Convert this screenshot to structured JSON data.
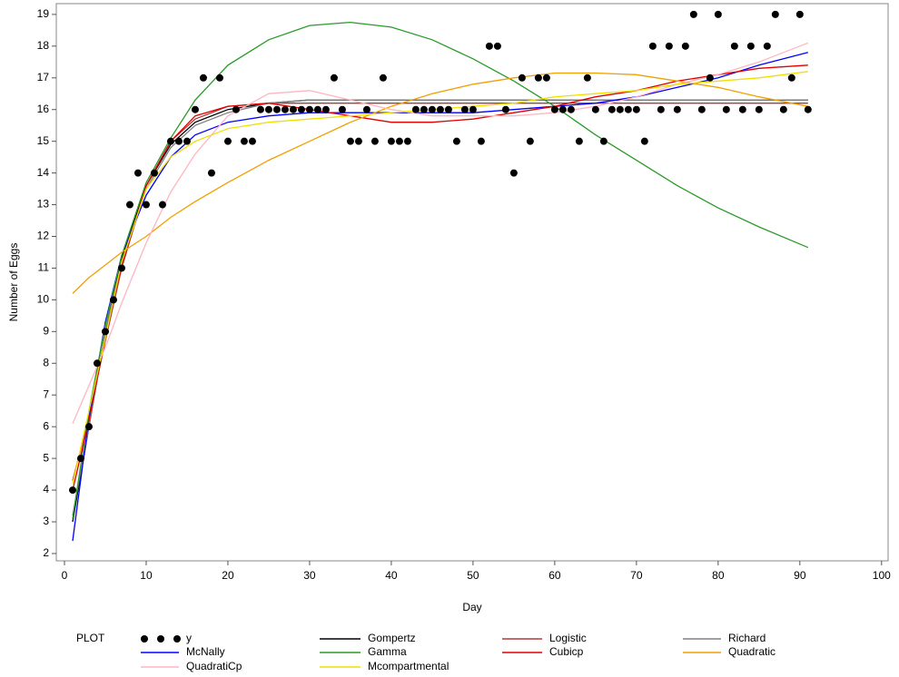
{
  "chart_data": {
    "type": "line",
    "x_label": "Day",
    "y_label": "Number of Eggs",
    "legend_title": "PLOT",
    "xlim": [
      -1,
      100.8
    ],
    "ylim": [
      1.77,
      19.34
    ],
    "xticks": [
      0,
      10,
      20,
      30,
      40,
      50,
      60,
      70,
      80,
      90,
      100
    ],
    "yticks": [
      2,
      3,
      4,
      5,
      6,
      7,
      8,
      9,
      10,
      11,
      12,
      13,
      14,
      15,
      16,
      17,
      18,
      19
    ],
    "points": {
      "name": "y",
      "color": "#000000",
      "x": [
        1,
        2,
        3,
        4,
        5,
        6,
        7,
        8,
        9,
        10,
        11,
        12,
        13,
        14,
        15,
        16,
        17,
        18,
        19,
        20,
        21,
        22,
        23,
        24,
        25,
        26,
        27,
        28,
        29,
        30,
        31,
        32,
        33,
        34,
        35,
        36,
        37,
        38,
        39,
        40,
        41,
        42,
        43,
        44,
        45,
        46,
        47,
        48,
        49,
        50,
        51,
        52,
        53,
        54,
        55,
        56,
        57,
        58,
        59,
        60,
        61,
        62,
        63,
        64,
        65,
        66,
        67,
        68,
        69,
        70,
        71,
        72,
        73,
        74,
        75,
        76,
        77,
        78,
        79,
        80,
        81,
        82,
        83,
        84,
        85,
        86,
        87,
        88,
        89,
        90,
        91
      ],
      "values": [
        4,
        5,
        6,
        8,
        9,
        10,
        11,
        13,
        14,
        13,
        14,
        13,
        15,
        15,
        15,
        16,
        17,
        14,
        17,
        15,
        16,
        15,
        15,
        16,
        16,
        16,
        16,
        16,
        16,
        16,
        16,
        16,
        17,
        16,
        15,
        15,
        16,
        15,
        17,
        15,
        15,
        15,
        16,
        16,
        16,
        16,
        16,
        15,
        16,
        16,
        15,
        18,
        18,
        16,
        14,
        17,
        15,
        17,
        17,
        16,
        16,
        16,
        15,
        17,
        16,
        15,
        16,
        16,
        16,
        16,
        15,
        18,
        16,
        18,
        16,
        18,
        19,
        16,
        17,
        19,
        16,
        18,
        16,
        18,
        16,
        18,
        19,
        16,
        17,
        19,
        16
      ]
    },
    "curve_x": [
      1,
      3,
      5,
      7,
      10,
      13,
      16,
      20,
      25,
      30,
      35,
      40,
      45,
      50,
      55,
      60,
      65,
      70,
      75,
      80,
      85,
      91
    ],
    "series": [
      {
        "name": "Gompertz",
        "color": "#000000",
        "values": [
          3.0,
          6.0,
          9.0,
          11.3,
          13.6,
          14.9,
          15.6,
          16.0,
          16.2,
          16.3,
          16.3,
          16.3,
          16.3,
          16.3,
          16.3,
          16.3,
          16.3,
          16.3,
          16.3,
          16.3,
          16.3,
          16.3
        ]
      },
      {
        "name": "Logistic",
        "color": "#b03a3a",
        "values": [
          4.3,
          6.3,
          8.7,
          11.0,
          13.6,
          15.0,
          15.7,
          16.1,
          16.2,
          16.2,
          16.2,
          16.2,
          16.2,
          16.2,
          16.2,
          16.2,
          16.2,
          16.2,
          16.2,
          16.2,
          16.2,
          16.2
        ]
      },
      {
        "name": "Richard",
        "color": "#808080",
        "values": [
          3.2,
          6.0,
          9.0,
          11.2,
          13.5,
          14.8,
          15.5,
          15.9,
          16.2,
          16.3,
          16.3,
          16.3,
          16.3,
          16.3,
          16.3,
          16.3,
          16.3,
          16.3,
          16.3,
          16.3,
          16.3,
          16.3
        ]
      },
      {
        "name": "McNally",
        "color": "#0000ff",
        "values": [
          2.4,
          6.3,
          9.3,
          11.4,
          13.3,
          14.5,
          15.2,
          15.6,
          15.8,
          15.9,
          15.9,
          15.9,
          15.9,
          15.9,
          16.0,
          16.1,
          16.2,
          16.4,
          16.7,
          17.0,
          17.4,
          17.8
        ]
      },
      {
        "name": "Gamma",
        "color": "#2a9a2a",
        "values": [
          3.1,
          6.5,
          9.2,
          11.4,
          13.7,
          15.1,
          16.3,
          17.4,
          18.2,
          18.65,
          18.75,
          18.6,
          18.2,
          17.6,
          16.9,
          16.1,
          15.2,
          14.4,
          13.6,
          12.9,
          12.3,
          11.65
        ]
      },
      {
        "name": "Cubicp",
        "color": "#e00000",
        "values": [
          4.0,
          6.2,
          8.8,
          11.1,
          13.6,
          15.0,
          15.8,
          16.1,
          16.2,
          16.0,
          15.8,
          15.6,
          15.6,
          15.7,
          15.9,
          16.1,
          16.4,
          16.6,
          16.9,
          17.1,
          17.3,
          17.4
        ]
      },
      {
        "name": "Quadratic",
        "color": "#f0a000",
        "values": [
          10.2,
          10.7,
          11.1,
          11.5,
          12.0,
          12.6,
          13.1,
          13.7,
          14.4,
          15.0,
          15.6,
          16.1,
          16.5,
          16.8,
          17.0,
          17.15,
          17.15,
          17.1,
          16.9,
          16.7,
          16.4,
          16.1
        ]
      },
      {
        "name": "QuadratiCp",
        "color": "#ffb6c1",
        "values": [
          6.1,
          7.3,
          8.5,
          9.9,
          11.8,
          13.4,
          14.6,
          15.8,
          16.5,
          16.6,
          16.3,
          16.0,
          15.8,
          15.8,
          15.8,
          15.9,
          16.1,
          16.4,
          16.8,
          17.1,
          17.5,
          18.1
        ]
      },
      {
        "name": "Mcompartmental",
        "color": "#f0e000",
        "values": [
          4.2,
          6.5,
          8.8,
          11.2,
          13.5,
          14.5,
          15.0,
          15.4,
          15.6,
          15.7,
          15.8,
          15.9,
          16.0,
          16.1,
          16.2,
          16.4,
          16.5,
          16.6,
          16.8,
          16.9,
          17.0,
          17.2
        ]
      }
    ]
  }
}
